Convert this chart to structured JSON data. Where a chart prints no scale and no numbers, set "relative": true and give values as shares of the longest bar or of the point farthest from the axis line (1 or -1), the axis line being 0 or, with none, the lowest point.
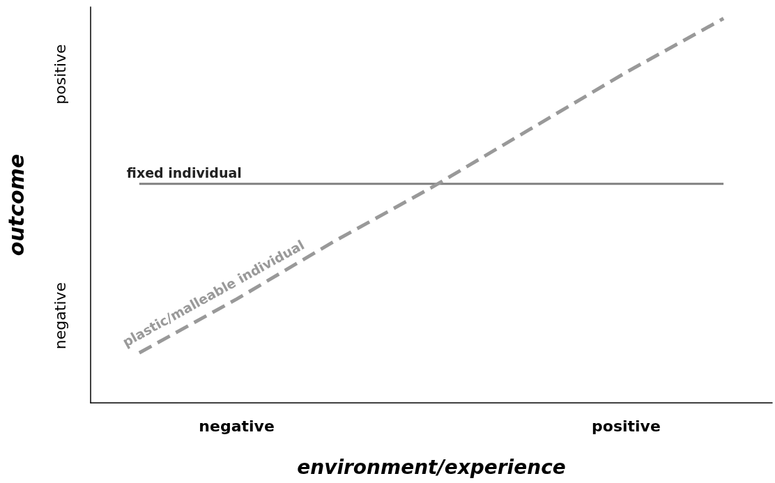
{
  "chart_data": {
    "type": "line",
    "xlabel": "environment/experience",
    "ylabel": "outcome",
    "relative": true,
    "categories": [
      null,
      "negative",
      null,
      null,
      null,
      "positive",
      null
    ],
    "series": [
      {
        "color": "#808080",
        "line_style": "solid",
        "values": [
          0.57,
          0.57,
          0.57,
          0.57,
          0.57,
          0.57,
          0.57
        ]
      },
      {
        "color": "#999999",
        "line_style": "dashed",
        "values": [
          0.13,
          0.27,
          0.42,
          0.56,
          0.71,
          0.86,
          1
        ]
      }
    ],
    "annotations": [
      "fixed individual",
      "plastic/malleable individual",
      "negative",
      "positive"
    ],
    "grid": false,
    "marker": "none"
  }
}
